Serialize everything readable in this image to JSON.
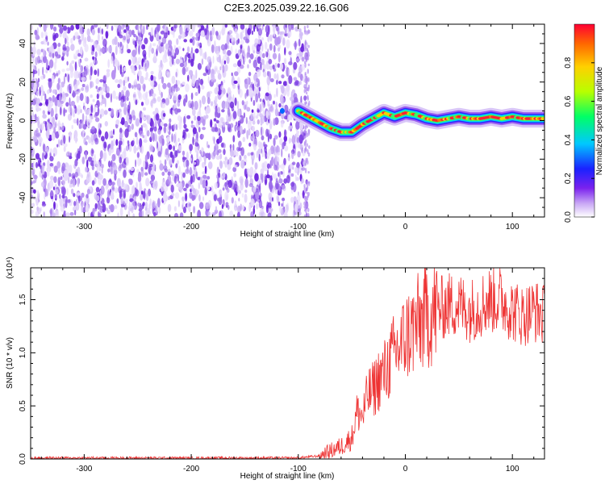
{
  "title": "C2E3.2025.039.22.16.G06",
  "chart_data": [
    {
      "type": "heatmap",
      "xlabel": "Height of straight line (km)",
      "ylabel": "Frequency (Hz)",
      "xlim": [
        -350,
        130
      ],
      "ylim": [
        -50,
        50
      ],
      "x_ticks": [
        -300,
        -200,
        -100,
        0,
        100
      ],
      "y_ticks": [
        -40,
        -20,
        0,
        20,
        40
      ],
      "noise_region_x": [
        -350,
        -92
      ],
      "signal_track": [
        {
          "x": -100,
          "y": 5
        },
        {
          "x": -90,
          "y": 2
        },
        {
          "x": -80,
          "y": -1
        },
        {
          "x": -70,
          "y": -4
        },
        {
          "x": -60,
          "y": -6
        },
        {
          "x": -50,
          "y": -6
        },
        {
          "x": -40,
          "y": -2
        },
        {
          "x": -30,
          "y": 1
        },
        {
          "x": -20,
          "y": 4
        },
        {
          "x": -10,
          "y": 2
        },
        {
          "x": 0,
          "y": 4
        },
        {
          "x": 10,
          "y": 3
        },
        {
          "x": 20,
          "y": 1
        },
        {
          "x": 30,
          "y": 0
        },
        {
          "x": 40,
          "y": 1
        },
        {
          "x": 50,
          "y": 2
        },
        {
          "x": 60,
          "y": 1
        },
        {
          "x": 70,
          "y": 1
        },
        {
          "x": 80,
          "y": 2
        },
        {
          "x": 90,
          "y": 1
        },
        {
          "x": 100,
          "y": 2
        },
        {
          "x": 110,
          "y": 1
        },
        {
          "x": 120,
          "y": 1
        },
        {
          "x": 130,
          "y": 1
        }
      ],
      "colorbar": {
        "label": "Normalized spectral amplitude",
        "range": [
          0,
          1
        ],
        "ticks": [
          "0.0",
          "0.2",
          "0.4",
          "0.6",
          "0.8"
        ]
      }
    },
    {
      "type": "line",
      "xlabel": "Height of straight line (km)",
      "ylabel": "SNR (10 * v/v)",
      "scale_label": "(x10⁴)",
      "xlim": [
        -350,
        130
      ],
      "ylim": [
        0,
        1.8
      ],
      "x_ticks": [
        -300,
        -200,
        -100,
        0,
        100
      ],
      "y_ticks": [
        "0.0",
        "0.5",
        "1.0",
        "1.5"
      ],
      "color": "#ee3333",
      "series": [
        {
          "x": [
            -350,
            -300,
            -250,
            -200,
            -150,
            -100,
            -80,
            -60,
            -50,
            -45,
            -40,
            -35,
            -30,
            -25,
            -20,
            -15,
            -10,
            -5,
            0,
            10,
            20,
            30,
            40,
            50,
            60,
            70,
            80,
            90,
            100,
            110,
            120,
            130
          ],
          "y": [
            0.01,
            0.01,
            0.01,
            0.01,
            0.01,
            0.01,
            0.03,
            0.12,
            0.2,
            0.45,
            0.4,
            0.6,
            0.65,
            0.75,
            0.8,
            0.9,
            1.0,
            1.05,
            1.15,
            1.25,
            1.35,
            1.4,
            1.45,
            1.45,
            1.4,
            1.45,
            1.5,
            1.5,
            1.4,
            1.35,
            1.4,
            1.35
          ]
        }
      ]
    }
  ]
}
